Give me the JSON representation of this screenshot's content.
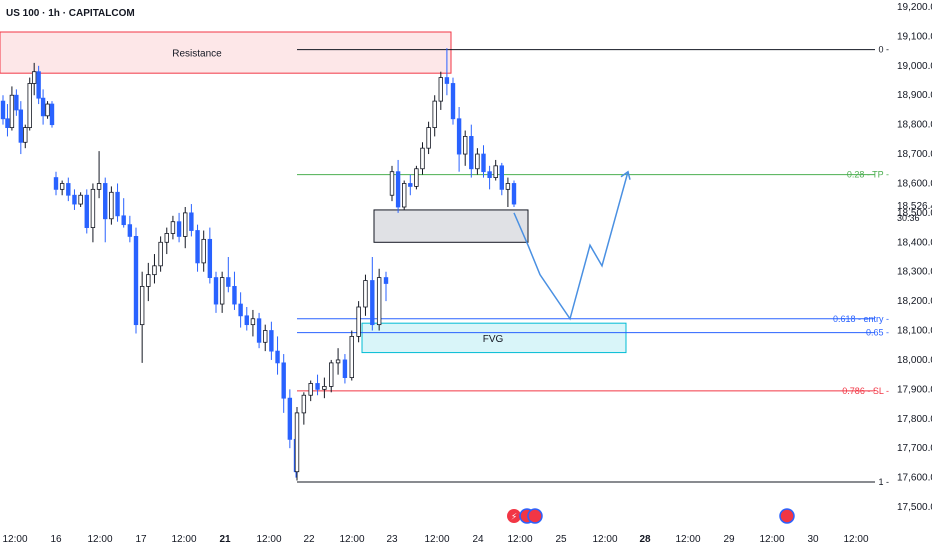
{
  "header": {
    "symbol": "US 100 · 1h · CAPITALCOM"
  },
  "price_label": {
    "value": "18,526.4",
    "countdown": "30:36"
  },
  "zones": {
    "resistance": {
      "label": "Resistance",
      "top": 19115,
      "bottom": 18975,
      "color": "#f23645"
    },
    "fvg": {
      "label": "FVG",
      "top": 18125,
      "bottom": 18025,
      "color": "#00bcd4"
    },
    "order_block": {
      "top": 18510,
      "bottom": 18400
    }
  },
  "fib_levels": [
    {
      "label": "0 -",
      "price": 19055,
      "color": "#131722"
    },
    {
      "label": "0.28 - TP -",
      "price": 18630,
      "color": "#4caf50"
    },
    {
      "label": "0.618 - entry -",
      "price": 18140,
      "color": "#2962ff"
    },
    {
      "label": "0.65 -",
      "price": 18093,
      "color": "#2962ff"
    },
    {
      "label": "0.786 - SL -",
      "price": 17895,
      "color": "#f23645"
    },
    {
      "label": "1 -",
      "price": 17585,
      "color": "#131722"
    }
  ],
  "chart_data": {
    "type": "candlestick",
    "symbol": "US 100",
    "interval": "1h",
    "ylim": [
      17450,
      19280
    ],
    "y_ticks": [
      "19,200.0",
      "19,100.0",
      "19,000.0",
      "18,900.0",
      "18,800.0",
      "18,700.0",
      "18,600.0",
      "18,500.0",
      "18,400.0",
      "18,300.0",
      "18,200.0",
      "18,100.0",
      "18,000.0",
      "17,900.0",
      "17,800.0",
      "17,700.0",
      "17,600.0",
      "17,500.0"
    ],
    "y_tick_values": [
      19200,
      19100,
      19000,
      18900,
      18800,
      18700,
      18600,
      18500,
      18400,
      18300,
      18200,
      18100,
      18000,
      17900,
      17800,
      17700,
      17600,
      17500
    ],
    "x_ticks": [
      "12:00",
      "16",
      "12:00",
      "17",
      "12:00",
      "21",
      "12:00",
      "22",
      "12:00",
      "23",
      "12:00",
      "24",
      "12:00",
      "25",
      "12:00",
      "28",
      "12:00",
      "29",
      "12:00",
      "30",
      "12:00"
    ],
    "last_price": 18526.4,
    "candles": [
      [
        18880,
        18900,
        18800,
        18820
      ],
      [
        18820,
        18870,
        18760,
        18790
      ],
      [
        18790,
        18930,
        18780,
        18900
      ],
      [
        18900,
        18920,
        18830,
        18850
      ],
      [
        18850,
        18880,
        18700,
        18740
      ],
      [
        18740,
        18800,
        18720,
        18790
      ],
      [
        18790,
        18960,
        18780,
        18940
      ],
      [
        18940,
        19010,
        18900,
        18980
      ],
      [
        18980,
        19000,
        18870,
        18890
      ],
      [
        18890,
        18920,
        18800,
        18830
      ],
      [
        18830,
        18880,
        18820,
        18870
      ],
      [
        18870,
        18880,
        18790,
        18800
      ],
      [
        18620,
        18640,
        18560,
        18580
      ],
      [
        18580,
        18610,
        18560,
        18600
      ],
      [
        18600,
        18620,
        18540,
        18560
      ],
      [
        18560,
        18580,
        18510,
        18530
      ],
      [
        18530,
        18570,
        18520,
        18560
      ],
      [
        18560,
        18580,
        18430,
        18450
      ],
      [
        18450,
        18600,
        18400,
        18580
      ],
      [
        18580,
        18710,
        18550,
        18600
      ],
      [
        18600,
        18620,
        18400,
        18480
      ],
      [
        18480,
        18590,
        18460,
        18570
      ],
      [
        18570,
        18600,
        18470,
        18490
      ],
      [
        18490,
        18550,
        18450,
        18460
      ],
      [
        18460,
        18490,
        18400,
        18420
      ],
      [
        18420,
        18450,
        18090,
        18120
      ],
      [
        18120,
        18300,
        17990,
        18250
      ],
      [
        18250,
        18330,
        18200,
        18290
      ],
      [
        18290,
        18360,
        18260,
        18320
      ],
      [
        18320,
        18420,
        18300,
        18400
      ],
      [
        18400,
        18450,
        18360,
        18430
      ],
      [
        18430,
        18490,
        18410,
        18470
      ],
      [
        18470,
        18500,
        18400,
        18420
      ],
      [
        18420,
        18520,
        18380,
        18500
      ],
      [
        18500,
        18530,
        18420,
        18440
      ],
      [
        18440,
        18460,
        18300,
        18330
      ],
      [
        18330,
        18440,
        18300,
        18410
      ],
      [
        18410,
        18450,
        18260,
        18280
      ],
      [
        18280,
        18300,
        18160,
        18190
      ],
      [
        18190,
        18300,
        18160,
        18280
      ],
      [
        18280,
        18350,
        18230,
        18250
      ],
      [
        18250,
        18300,
        18170,
        18190
      ],
      [
        18190,
        18230,
        18110,
        18150
      ],
      [
        18150,
        18180,
        18100,
        18120
      ],
      [
        18120,
        18170,
        18080,
        18140
      ],
      [
        18140,
        18160,
        18040,
        18060
      ],
      [
        18060,
        18120,
        18030,
        18100
      ],
      [
        18100,
        18130,
        18000,
        18030
      ],
      [
        18030,
        18080,
        17950,
        17990
      ],
      [
        17990,
        18020,
        17820,
        17870
      ],
      [
        17870,
        17900,
        17700,
        17730
      ],
      [
        17730,
        17760,
        17600,
        17620
      ],
      [
        17620,
        17840,
        17590,
        17820
      ],
      [
        17820,
        17890,
        17780,
        17880
      ],
      [
        17880,
        17930,
        17860,
        17920
      ],
      [
        17920,
        17950,
        17880,
        17900
      ],
      [
        17900,
        17940,
        17870,
        17910
      ],
      [
        17910,
        18000,
        17890,
        17990
      ],
      [
        17990,
        18040,
        17950,
        18000
      ],
      [
        18000,
        18020,
        17920,
        17940
      ],
      [
        17940,
        18100,
        17930,
        18080
      ],
      [
        18080,
        18200,
        18060,
        18180
      ],
      [
        18180,
        18290,
        18150,
        18270
      ],
      [
        18270,
        18350,
        18100,
        18120
      ],
      [
        18120,
        18310,
        18100,
        18280
      ],
      [
        18280,
        18300,
        18200,
        18260
      ],
      [
        18560,
        18660,
        18540,
        18640
      ],
      [
        18640,
        18680,
        18500,
        18520
      ],
      [
        18520,
        18610,
        18510,
        18600
      ],
      [
        18600,
        18630,
        18560,
        18590
      ],
      [
        18590,
        18660,
        18580,
        18650
      ],
      [
        18650,
        18740,
        18630,
        18720
      ],
      [
        18720,
        18810,
        18700,
        18790
      ],
      [
        18790,
        18900,
        18760,
        18880
      ],
      [
        18880,
        18980,
        18850,
        18960
      ],
      [
        18960,
        19060,
        18900,
        18940
      ],
      [
        18940,
        18960,
        18800,
        18820
      ],
      [
        18820,
        18860,
        18640,
        18700
      ],
      [
        18700,
        18780,
        18660,
        18760
      ],
      [
        18760,
        18800,
        18620,
        18650
      ],
      [
        18650,
        18720,
        18630,
        18700
      ],
      [
        18700,
        18730,
        18620,
        18640
      ],
      [
        18640,
        18660,
        18580,
        18620
      ],
      [
        18620,
        18680,
        18610,
        18660
      ],
      [
        18660,
        18670,
        18560,
        18580
      ],
      [
        18580,
        18620,
        18520,
        18600
      ],
      [
        18600,
        18610,
        18520,
        18530
      ]
    ],
    "projection": [
      [
        18500,
        18390
      ],
      [
        18390,
        18290
      ],
      [
        18290,
        18140
      ],
      [
        18140,
        18390
      ],
      [
        18390,
        18320
      ],
      [
        18320,
        18640
      ]
    ]
  }
}
